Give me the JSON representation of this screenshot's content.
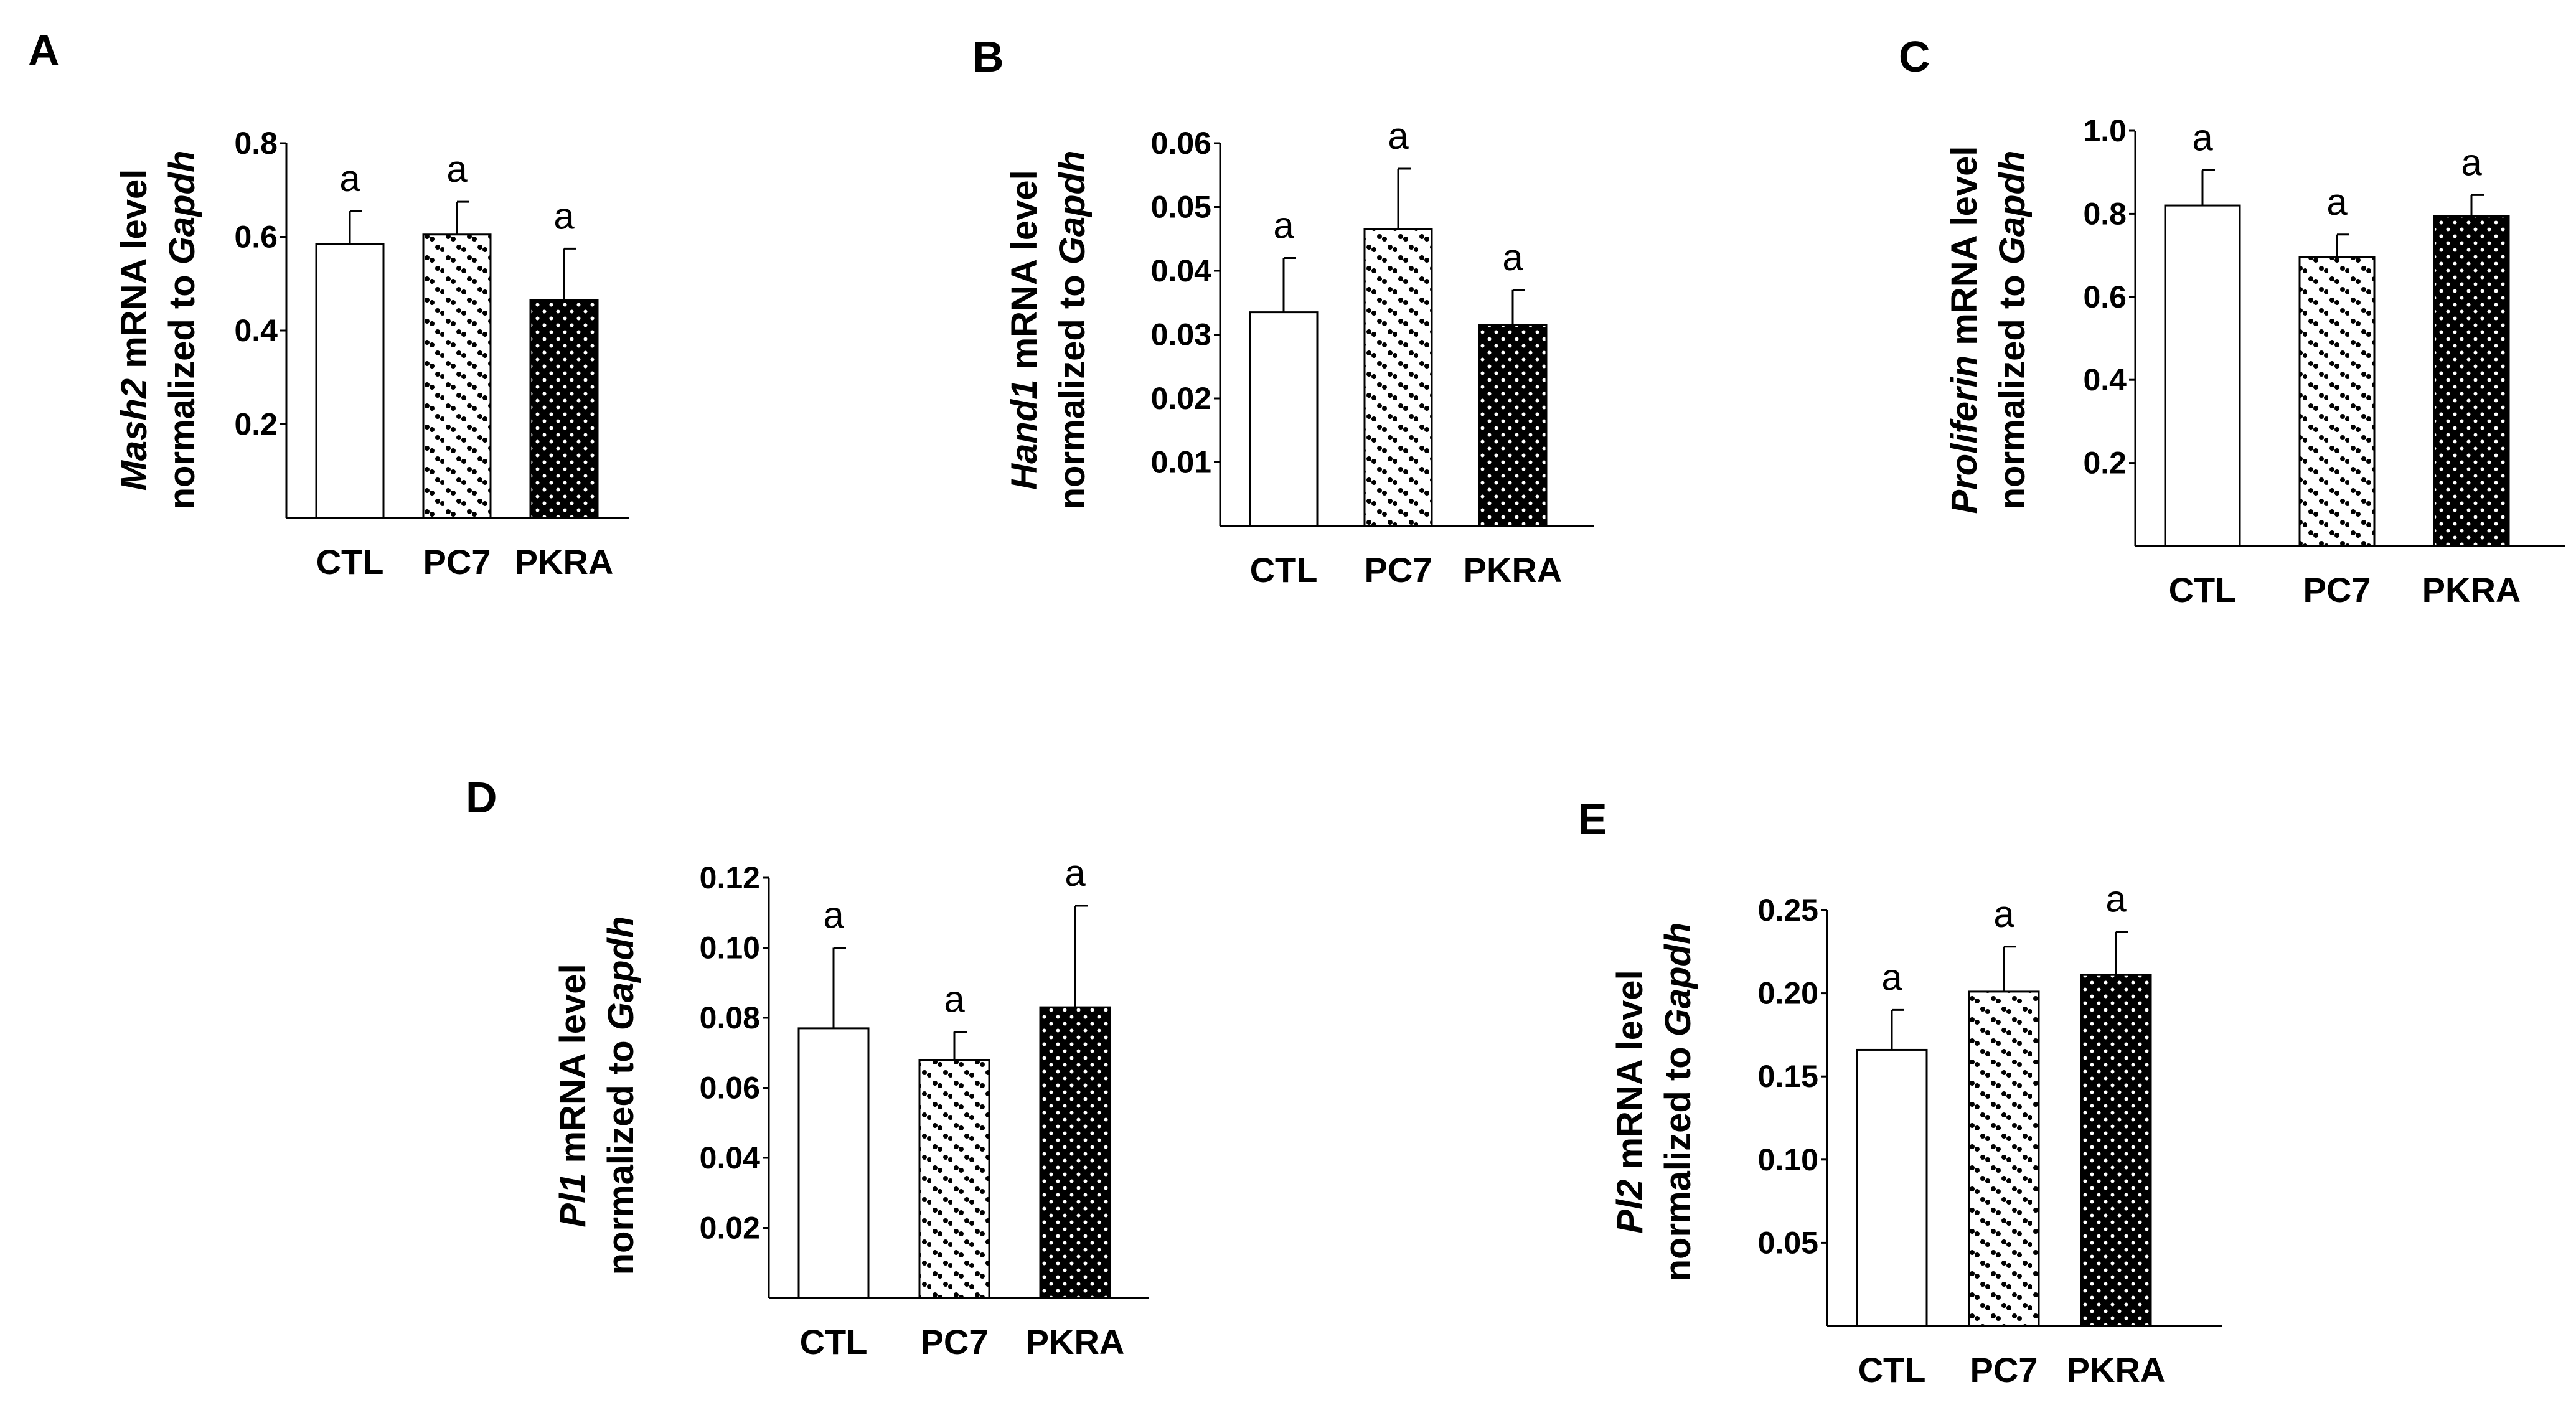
{
  "figure": {
    "background": "#ffffff",
    "ink": "#000000"
  },
  "chart_data": [
    {
      "panel": "A",
      "type": "bar",
      "categories": [
        "CTL",
        "PC7",
        "PKRA"
      ],
      "series": [
        {
          "name": "Mash2",
          "values": [
            0.585,
            0.605,
            0.465
          ],
          "errors": [
            0.07,
            0.07,
            0.11
          ]
        }
      ],
      "significance": [
        "a",
        "a",
        "a"
      ],
      "ylim": [
        0,
        0.8
      ],
      "yticks": [
        0.2,
        0.4,
        0.6,
        0.8
      ],
      "ytick_labels": [
        "0.2",
        "0.4",
        "0.6",
        "0.8"
      ],
      "ylabel_gene": "Mash2",
      "ylabel_rest": " mRNA level",
      "ylabel_line2": "normalized to ",
      "ylabel_norm": "Gapdh",
      "xlabel": "",
      "patterns": [
        "open",
        "sparse-dots",
        "dense-dots"
      ]
    },
    {
      "panel": "B",
      "type": "bar",
      "categories": [
        "CTL",
        "PC7",
        "PKRA"
      ],
      "series": [
        {
          "name": "Hand1",
          "values": [
            0.0335,
            0.0465,
            0.0315
          ],
          "errors": [
            0.0085,
            0.0095,
            0.0055
          ]
        }
      ],
      "significance": [
        "a",
        "a",
        "a"
      ],
      "ylim": [
        0,
        0.06
      ],
      "yticks": [
        0.01,
        0.02,
        0.03,
        0.04,
        0.05,
        0.06
      ],
      "ytick_labels": [
        "0.01",
        "0.02",
        "0.03",
        "0.04",
        "0.05",
        "0.06"
      ],
      "ylabel_gene": "Hand1",
      "ylabel_rest": " mRNA level",
      "ylabel_line2": "normalized to ",
      "ylabel_norm": "Gapdh",
      "xlabel": "",
      "patterns": [
        "open",
        "sparse-dots",
        "dense-dots"
      ]
    },
    {
      "panel": "C",
      "type": "bar",
      "categories": [
        "CTL",
        "PC7",
        "PKRA"
      ],
      "series": [
        {
          "name": "Proliferin",
          "values": [
            0.82,
            0.695,
            0.795
          ],
          "errors": [
            0.085,
            0.055,
            0.05
          ]
        }
      ],
      "significance": [
        "a",
        "a",
        "a"
      ],
      "ylim": [
        0,
        1.0
      ],
      "yticks": [
        0.2,
        0.4,
        0.6,
        0.8,
        1.0
      ],
      "ytick_labels": [
        "0.2",
        "0.4",
        "0.6",
        "0.8",
        "1.0"
      ],
      "ylabel_gene": "Proliferin",
      "ylabel_rest": " mRNA level",
      "ylabel_line2": "normalized to ",
      "ylabel_norm": "Gapdh",
      "xlabel": "",
      "patterns": [
        "open",
        "sparse-dots",
        "dense-dots"
      ]
    },
    {
      "panel": "D",
      "type": "bar",
      "categories": [
        "CTL",
        "PC7",
        "PKRA"
      ],
      "series": [
        {
          "name": "Pl1",
          "values": [
            0.077,
            0.068,
            0.083
          ],
          "errors": [
            0.023,
            0.008,
            0.029
          ]
        }
      ],
      "significance": [
        "a",
        "a",
        "a"
      ],
      "ylim": [
        0,
        0.12
      ],
      "yticks": [
        0.02,
        0.04,
        0.06,
        0.08,
        0.1,
        0.12
      ],
      "ytick_labels": [
        "0.02",
        "0.04",
        "0.06",
        "0.08",
        "0.10",
        "0.12"
      ],
      "ylabel_gene": "Pl1",
      "ylabel_rest": " mRNA level",
      "ylabel_line2": "normalized to ",
      "ylabel_norm": "Gapdh",
      "xlabel": "",
      "patterns": [
        "open",
        "sparse-dots",
        "dense-dots"
      ]
    },
    {
      "panel": "E",
      "type": "bar",
      "categories": [
        "CTL",
        "PC7",
        "PKRA"
      ],
      "series": [
        {
          "name": "Pl2",
          "values": [
            0.166,
            0.201,
            0.211
          ],
          "errors": [
            0.024,
            0.027,
            0.026
          ]
        }
      ],
      "significance": [
        "a",
        "a",
        "a"
      ],
      "ylim": [
        0,
        0.25
      ],
      "yticks": [
        0.05,
        0.1,
        0.15,
        0.2,
        0.25
      ],
      "ytick_labels": [
        "0.05",
        "0.10",
        "0.15",
        "0.20",
        "0.25"
      ],
      "ylabel_gene": "Pl2",
      "ylabel_rest": " mRNA level",
      "ylabel_line2": "normalized to ",
      "ylabel_norm": "Gapdh",
      "xlabel": "",
      "patterns": [
        "open",
        "sparse-dots",
        "dense-dots"
      ]
    }
  ]
}
